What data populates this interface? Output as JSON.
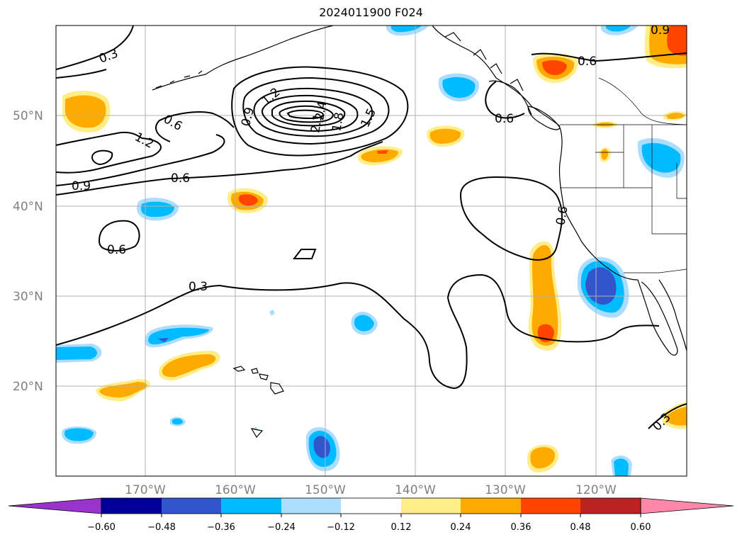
{
  "title": "2024011900 F024",
  "lat_labels": [
    "50°N",
    "40°N",
    "30°N",
    "20°N"
  ],
  "lon_labels": [
    "170°W",
    "160°W",
    "150°W",
    "140°W",
    "130°W",
    "120°W"
  ],
  "colorbar": {
    "ticks": [
      "−0.60",
      "−0.48",
      "−0.36",
      "−0.24",
      "−0.12",
      "0.12",
      "0.24",
      "0.36",
      "0.48",
      "0.60"
    ],
    "colors": [
      "#9933cc",
      "#000099",
      "#3355cc",
      "#00bbff",
      "#aaddff",
      "#ffffff",
      "#ffee88",
      "#ffaa00",
      "#ff4400",
      "#bb2222",
      "#ff88aa"
    ]
  },
  "contour_labels": {
    "c03_top": "0.3",
    "c06_ne": "0.6",
    "c06_nw": "0.6",
    "c12_w": "1.2",
    "c09_w": "0.9",
    "c06_w": "0.6",
    "c09_center": "0.9",
    "c12_center": "1.2",
    "c24_center": "2.4",
    "c21_center": "2.1",
    "c18_center": "1.8",
    "c15_center": "1.5",
    "c06_coast": "0.6",
    "c09_corner": "0.9",
    "c06_circle": "0.6",
    "c06_ca": "0.6",
    "c03_mid": "0.3",
    "c03_se": "0.3"
  }
}
